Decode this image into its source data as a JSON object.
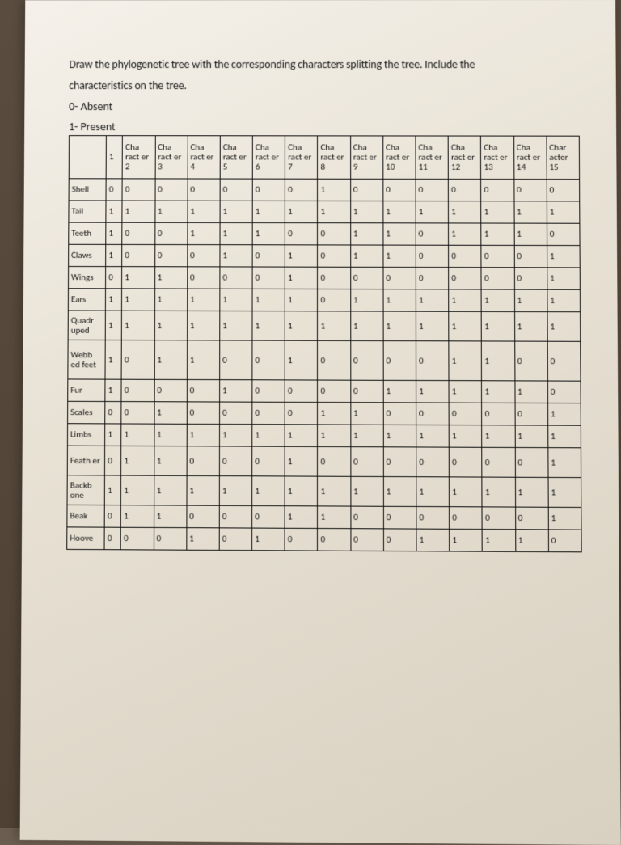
{
  "instructions_line1": "Draw the phylogenetic tree with the corresponding characters splitting the tree. Include the",
  "instructions_line2": "characteristics on the tree.",
  "legend_absent": "0- Absent",
  "legend_present": "1- Present",
  "table": {
    "headers": [
      "",
      "1",
      "Cha ract er 2",
      "Cha ract er 3",
      "Cha ract er 4",
      "Cha ract er 5",
      "Cha ract er 6",
      "Cha ract er 7",
      "Cha ract er 8",
      "Cha ract er 9",
      "Cha ract er 10",
      "Cha ract er 11",
      "Cha ract er 12",
      "Cha ract er 13",
      "Cha ract er 14",
      "Char acter 15"
    ],
    "rows": [
      {
        "label": "Shell",
        "cells": [
          "0",
          "0",
          "0",
          "0",
          "0",
          "0",
          "0",
          "1",
          "0",
          "0",
          "0",
          "0",
          "0",
          "0",
          "0"
        ]
      },
      {
        "label": "Tail",
        "cells": [
          "1",
          "1",
          "1",
          "1",
          "1",
          "1",
          "1",
          "1",
          "1",
          "1",
          "1",
          "1",
          "1",
          "1",
          "1"
        ]
      },
      {
        "label": "Teeth",
        "cells": [
          "1",
          "0",
          "0",
          "1",
          "1",
          "1",
          "0",
          "0",
          "1",
          "1",
          "0",
          "1",
          "1",
          "1",
          "0"
        ]
      },
      {
        "label": "Claws",
        "cells": [
          "1",
          "0",
          "0",
          "0",
          "1",
          "0",
          "1",
          "0",
          "1",
          "1",
          "0",
          "0",
          "0",
          "0",
          "1"
        ]
      },
      {
        "label": "Wings",
        "cells": [
          "0",
          "1",
          "1",
          "0",
          "0",
          "0",
          "1",
          "0",
          "0",
          "0",
          "0",
          "0",
          "0",
          "0",
          "1"
        ]
      },
      {
        "label": "Ears",
        "cells": [
          "1",
          "1",
          "1",
          "1",
          "1",
          "1",
          "1",
          "0",
          "1",
          "1",
          "1",
          "1",
          "1",
          "1",
          "1"
        ]
      },
      {
        "label": "Quadr uped",
        "cells": [
          "1",
          "1",
          "1",
          "1",
          "1",
          "1",
          "1",
          "1",
          "1",
          "1",
          "1",
          "1",
          "1",
          "1",
          "1"
        ]
      },
      {
        "label": "Webb ed feet",
        "cells": [
          "1",
          "0",
          "1",
          "1",
          "0",
          "0",
          "1",
          "0",
          "0",
          "0",
          "0",
          "1",
          "1",
          "0",
          "0"
        ]
      },
      {
        "label": "Fur",
        "cells": [
          "1",
          "0",
          "0",
          "0",
          "1",
          "0",
          "0",
          "0",
          "0",
          "1",
          "1",
          "1",
          "1",
          "1",
          "0"
        ]
      },
      {
        "label": "Scales",
        "cells": [
          "0",
          "0",
          "1",
          "0",
          "0",
          "0",
          "0",
          "1",
          "1",
          "0",
          "0",
          "0",
          "0",
          "0",
          "1"
        ]
      },
      {
        "label": "Limbs",
        "cells": [
          "1",
          "1",
          "1",
          "1",
          "1",
          "1",
          "1",
          "1",
          "1",
          "1",
          "1",
          "1",
          "1",
          "1",
          "1"
        ]
      },
      {
        "label": "Feath er",
        "cells": [
          "0",
          "1",
          "1",
          "0",
          "0",
          "0",
          "1",
          "0",
          "0",
          "0",
          "0",
          "0",
          "0",
          "0",
          "1"
        ]
      },
      {
        "label": "Backb one",
        "cells": [
          "1",
          "1",
          "1",
          "1",
          "1",
          "1",
          "1",
          "1",
          "1",
          "1",
          "1",
          "1",
          "1",
          "1",
          "1"
        ]
      },
      {
        "label": "Beak",
        "cells": [
          "0",
          "1",
          "1",
          "0",
          "0",
          "0",
          "1",
          "1",
          "0",
          "0",
          "0",
          "0",
          "0",
          "0",
          "1"
        ]
      },
      {
        "label": "Hoove",
        "cells": [
          "0",
          "0",
          "0",
          "1",
          "0",
          "1",
          "0",
          "0",
          "0",
          "0",
          "1",
          "1",
          "1",
          "1",
          "0"
        ]
      }
    ]
  },
  "colors": {
    "paper": "#ece6da",
    "ink": "#111111",
    "desk": "#5a4c3e"
  }
}
